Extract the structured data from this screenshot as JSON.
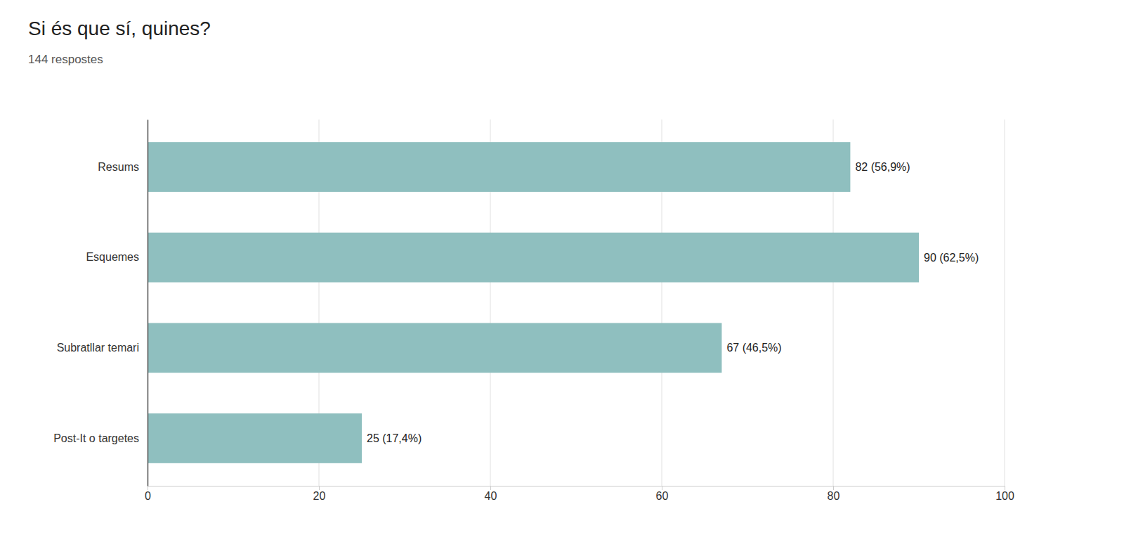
{
  "chart_data": {
    "type": "bar",
    "orientation": "horizontal",
    "title": "Si és que sí, quines?",
    "subtitle": "144 respostes",
    "categories": [
      "Resums",
      "Esquemes",
      "Subratllar temari",
      "Post-It o targetes"
    ],
    "values": [
      82,
      90,
      67,
      25
    ],
    "value_labels": [
      "82 (56,9%)",
      "90 (62,5%)",
      "67 (46,5%)",
      "25 (17,4%)"
    ],
    "data_labels": true,
    "color": "#8fbfbf",
    "xlim": [
      0,
      100
    ],
    "xticks": [
      0,
      20,
      40,
      60,
      80,
      100
    ],
    "grid": true
  }
}
